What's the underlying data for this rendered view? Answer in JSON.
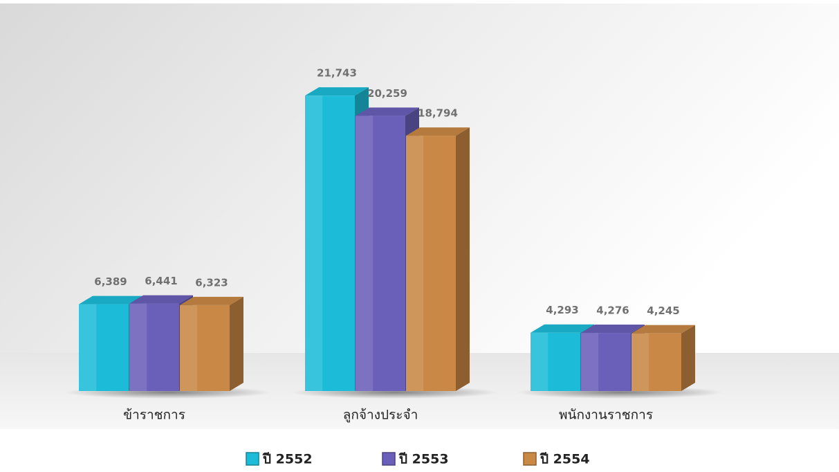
{
  "chart_data": {
    "type": "bar3d",
    "categories": [
      "ข้าราชการ",
      "ลูกจ้างประจำ",
      "พนักงานราชการ"
    ],
    "series": [
      {
        "name": "ปี 2552",
        "color": "#1cbcd8",
        "values": [
          6389,
          21743,
          4293
        ],
        "value_labels": [
          "6,389",
          "21,743",
          "4,293"
        ]
      },
      {
        "name": "ปี 2553",
        "color": "#6a5fb9",
        "values": [
          6441,
          20259,
          4276
        ],
        "value_labels": [
          "6,441",
          "20,259",
          "4,276"
        ]
      },
      {
        "name": "ปี 2554",
        "color": "#c98845",
        "values": [
          6323,
          18794,
          4245
        ],
        "value_labels": [
          "6,323",
          "18,794",
          "4,245"
        ]
      }
    ],
    "legend": "bottom"
  }
}
